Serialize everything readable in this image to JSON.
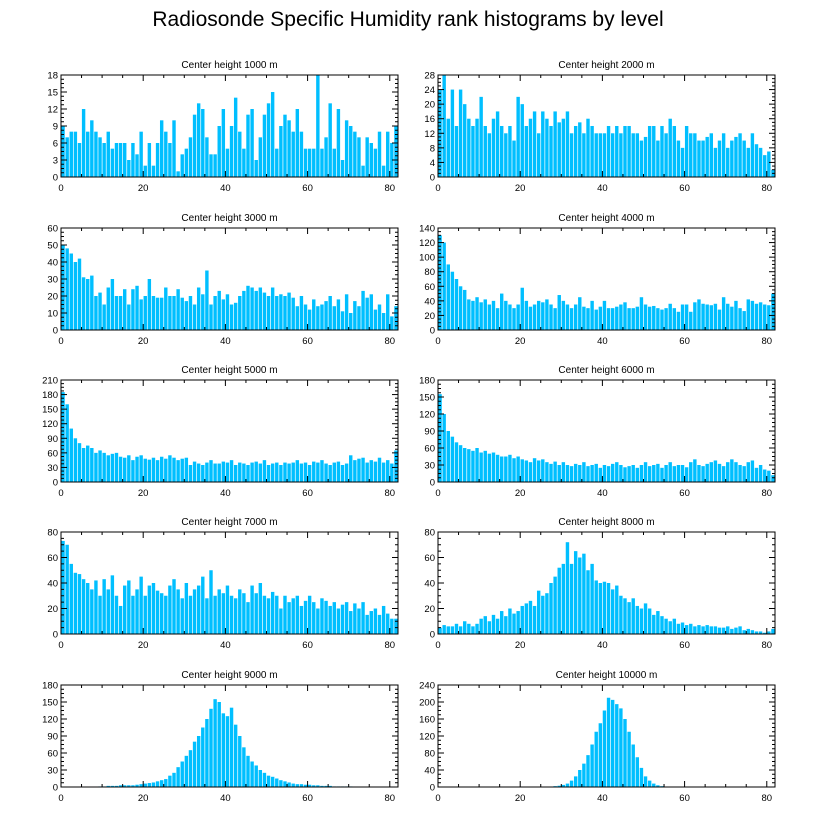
{
  "title": "Radiosonde Specific Humidity rank histograms by level",
  "colors": {
    "bar": "#00BFFF",
    "axis": "#000000",
    "background": "#FFFFFF"
  },
  "chart_data": [
    {
      "type": "bar",
      "title": "Center height 1000 m",
      "xlim": [
        0,
        82
      ],
      "ylim": [
        0,
        18
      ],
      "yticks": [
        0,
        3,
        6,
        9,
        12,
        15,
        18
      ],
      "xticks": [
        0,
        20,
        40,
        60,
        80
      ],
      "values": [
        9,
        7,
        8,
        8,
        6,
        12,
        8,
        10,
        8,
        7,
        6,
        8,
        5,
        6,
        6,
        6,
        3,
        6,
        4,
        8,
        2,
        6,
        2,
        6,
        10,
        8,
        6,
        10,
        1,
        4,
        5,
        7,
        11,
        13,
        12,
        7,
        4,
        4,
        9,
        12,
        5,
        9,
        14,
        8,
        5,
        11,
        12,
        3,
        7,
        11,
        13,
        15,
        5,
        9,
        11,
        10,
        8,
        12,
        8,
        5,
        5,
        5,
        18,
        5,
        7,
        13,
        5,
        12,
        3,
        10,
        9,
        8,
        7,
        2,
        7,
        6,
        5,
        8,
        2,
        8,
        6,
        9
      ]
    },
    {
      "type": "bar",
      "title": "Center height 2000 m",
      "xlim": [
        0,
        82
      ],
      "ylim": [
        0,
        28
      ],
      "yticks": [
        0,
        4,
        8,
        12,
        16,
        20,
        24,
        28
      ],
      "xticks": [
        0,
        20,
        40,
        60,
        80
      ],
      "values": [
        24,
        28,
        16,
        24,
        14,
        24,
        20,
        16,
        14,
        16,
        22,
        14,
        12,
        16,
        18,
        14,
        12,
        14,
        10,
        22,
        20,
        14,
        16,
        18,
        12,
        18,
        16,
        14,
        18,
        15,
        16,
        18,
        12,
        14,
        15,
        12,
        16,
        14,
        12,
        12,
        12,
        14,
        12,
        14,
        12,
        14,
        14,
        12,
        12,
        10,
        11,
        14,
        14,
        10,
        14,
        12,
        16,
        14,
        10,
        8,
        14,
        12,
        12,
        10,
        10,
        11,
        12,
        8,
        10,
        12,
        8,
        10,
        11,
        12,
        10,
        8,
        12,
        9,
        8,
        6,
        7,
        2
      ]
    },
    {
      "type": "bar",
      "title": "Center height 3000 m",
      "xlim": [
        0,
        82
      ],
      "ylim": [
        0,
        60
      ],
      "yticks": [
        0,
        10,
        20,
        30,
        40,
        50,
        60
      ],
      "xticks": [
        0,
        20,
        40,
        60,
        80
      ],
      "values": [
        50,
        48,
        45,
        40,
        42,
        31,
        30,
        32,
        20,
        22,
        15,
        25,
        30,
        20,
        20,
        24,
        15,
        24,
        26,
        18,
        20,
        30,
        20,
        19,
        19,
        25,
        20,
        20,
        24,
        19,
        17,
        20,
        15,
        25,
        21,
        35,
        15,
        20,
        23,
        18,
        21,
        15,
        16,
        20,
        23,
        26,
        25,
        23,
        25,
        22,
        20,
        25,
        20,
        21,
        20,
        22,
        19,
        14,
        20,
        15,
        12,
        18,
        14,
        15,
        17,
        20,
        14,
        18,
        11,
        21,
        10,
        17,
        14,
        23,
        19,
        21,
        12,
        15,
        10,
        21,
        8,
        14
      ]
    },
    {
      "type": "bar",
      "title": "Center height 4000 m",
      "xlim": [
        0,
        82
      ],
      "ylim": [
        0,
        140
      ],
      "yticks": [
        0,
        20,
        40,
        60,
        80,
        100,
        120,
        140
      ],
      "xticks": [
        0,
        20,
        40,
        60,
        80
      ],
      "values": [
        130,
        120,
        90,
        80,
        70,
        60,
        55,
        42,
        40,
        45,
        38,
        42,
        35,
        40,
        30,
        50,
        40,
        35,
        30,
        35,
        58,
        40,
        32,
        35,
        40,
        38,
        42,
        35,
        30,
        48,
        40,
        35,
        30,
        35,
        45,
        32,
        30,
        40,
        28,
        32,
        40,
        30,
        30,
        32,
        35,
        38,
        30,
        30,
        32,
        45,
        35,
        32,
        33,
        30,
        28,
        30,
        36,
        30,
        25,
        35,
        35,
        25,
        38,
        42,
        36,
        35,
        34,
        36,
        28,
        45,
        36,
        32,
        40,
        30,
        26,
        42,
        40,
        36,
        38,
        35,
        34,
        50
      ]
    },
    {
      "type": "bar",
      "title": "Center height 5000 m",
      "xlim": [
        0,
        82
      ],
      "ylim": [
        0,
        210
      ],
      "yticks": [
        0,
        30,
        60,
        90,
        120,
        150,
        180,
        210
      ],
      "xticks": [
        0,
        20,
        40,
        60,
        80
      ],
      "values": [
        185,
        160,
        110,
        90,
        80,
        70,
        75,
        70,
        60,
        65,
        60,
        55,
        58,
        60,
        52,
        50,
        55,
        45,
        52,
        55,
        48,
        46,
        50,
        45,
        52,
        48,
        55,
        50,
        45,
        48,
        50,
        35,
        42,
        38,
        35,
        40,
        45,
        38,
        38,
        42,
        40,
        45,
        35,
        40,
        38,
        35,
        40,
        42,
        38,
        45,
        35,
        38,
        40,
        35,
        40,
        38,
        40,
        45,
        38,
        40,
        35,
        42,
        40,
        45,
        38,
        35,
        40,
        42,
        35,
        38,
        55,
        45,
        48,
        50,
        40,
        45,
        42,
        50,
        40,
        45,
        38,
        65
      ]
    },
    {
      "type": "bar",
      "title": "Center height 6000 m",
      "xlim": [
        0,
        82
      ],
      "ylim": [
        0,
        180
      ],
      "yticks": [
        0,
        30,
        60,
        90,
        120,
        150,
        180
      ],
      "xticks": [
        0,
        20,
        40,
        60,
        80
      ],
      "values": [
        155,
        120,
        90,
        80,
        70,
        65,
        60,
        58,
        55,
        60,
        52,
        55,
        50,
        52,
        48,
        45,
        45,
        48,
        42,
        45,
        40,
        38,
        35,
        42,
        38,
        40,
        35,
        32,
        36,
        30,
        35,
        30,
        28,
        32,
        30,
        35,
        28,
        30,
        32,
        25,
        30,
        28,
        32,
        35,
        30,
        26,
        28,
        30,
        25,
        30,
        35,
        28,
        30,
        32,
        25,
        30,
        35,
        28,
        30,
        30,
        26,
        35,
        40,
        30,
        28,
        32,
        35,
        38,
        32,
        28,
        35,
        40,
        35,
        30,
        28,
        35,
        38,
        25,
        30,
        22,
        20,
        12
      ]
    },
    {
      "type": "bar",
      "title": "Center height 7000 m",
      "xlim": [
        0,
        82
      ],
      "ylim": [
        0,
        80
      ],
      "yticks": [
        0,
        20,
        40,
        60,
        80
      ],
      "xticks": [
        0,
        20,
        40,
        60,
        80
      ],
      "values": [
        73,
        70,
        55,
        48,
        47,
        43,
        40,
        35,
        42,
        30,
        43,
        35,
        46,
        30,
        22,
        38,
        42,
        30,
        35,
        45,
        30,
        38,
        40,
        34,
        32,
        30,
        38,
        43,
        35,
        28,
        40,
        30,
        35,
        38,
        45,
        28,
        50,
        30,
        35,
        32,
        38,
        30,
        28,
        35,
        32,
        25,
        38,
        32,
        40,
        30,
        28,
        33,
        30,
        20,
        30,
        25,
        28,
        30,
        22,
        26,
        30,
        25,
        20,
        28,
        26,
        22,
        25,
        20,
        23,
        25,
        18,
        24,
        20,
        25,
        15,
        18,
        20,
        15,
        22,
        16,
        12,
        12
      ]
    },
    {
      "type": "bar",
      "title": "Center height 8000 m",
      "xlim": [
        0,
        82
      ],
      "ylim": [
        0,
        80
      ],
      "yticks": [
        0,
        20,
        40,
        60,
        80
      ],
      "xticks": [
        0,
        20,
        40,
        60,
        80
      ],
      "values": [
        5,
        7,
        6,
        6,
        8,
        6,
        10,
        8,
        6,
        8,
        12,
        14,
        10,
        15,
        12,
        18,
        14,
        20,
        16,
        18,
        22,
        24,
        26,
        22,
        34,
        30,
        32,
        40,
        45,
        52,
        55,
        72,
        55,
        65,
        60,
        63,
        50,
        55,
        42,
        40,
        41,
        40,
        35,
        38,
        30,
        28,
        25,
        28,
        22,
        20,
        24,
        20,
        15,
        18,
        14,
        12,
        10,
        12,
        8,
        9,
        7,
        8,
        6,
        7,
        6,
        7,
        6,
        6,
        5,
        5,
        6,
        4,
        5,
        6,
        3,
        4,
        3,
        2,
        2,
        1,
        2,
        4
      ]
    },
    {
      "type": "bar",
      "title": "Center height 9000 m",
      "xlim": [
        0,
        82
      ],
      "ylim": [
        0,
        180
      ],
      "yticks": [
        0,
        30,
        60,
        90,
        120,
        150,
        180
      ],
      "xticks": [
        0,
        20,
        40,
        60,
        80
      ],
      "values": [
        0,
        0,
        0,
        0,
        0,
        0,
        0,
        0,
        0,
        1,
        1,
        2,
        2,
        2,
        3,
        3,
        3,
        3,
        4,
        5,
        6,
        7,
        8,
        10,
        12,
        14,
        20,
        25,
        35,
        45,
        55,
        65,
        80,
        90,
        105,
        120,
        138,
        155,
        150,
        130,
        125,
        140,
        110,
        90,
        70,
        55,
        45,
        38,
        30,
        25,
        20,
        18,
        15,
        12,
        10,
        8,
        6,
        5,
        5,
        4,
        4,
        3,
        3,
        2,
        2,
        2,
        1,
        1,
        1,
        1,
        1,
        0,
        0,
        0,
        0,
        0,
        0,
        0,
        0,
        0,
        0,
        0
      ]
    },
    {
      "type": "bar",
      "title": "Center height 10000 m",
      "xlim": [
        0,
        82
      ],
      "ylim": [
        0,
        240
      ],
      "yticks": [
        0,
        40,
        80,
        120,
        160,
        200,
        240
      ],
      "xticks": [
        0,
        20,
        40,
        60,
        80
      ],
      "values": [
        0,
        0,
        0,
        0,
        0,
        0,
        0,
        0,
        0,
        0,
        0,
        0,
        0,
        0,
        0,
        0,
        0,
        0,
        0,
        0,
        0,
        0,
        0,
        0,
        0,
        0,
        1,
        1,
        2,
        3,
        5,
        8,
        15,
        25,
        40,
        55,
        75,
        100,
        130,
        150,
        180,
        210,
        205,
        195,
        185,
        160,
        130,
        100,
        70,
        45,
        25,
        15,
        8,
        4,
        2,
        1,
        0,
        0,
        0,
        0,
        0,
        0,
        0,
        0,
        0,
        0,
        0,
        0,
        0,
        0,
        0,
        0,
        0,
        0,
        0,
        0,
        0,
        0,
        0,
        0,
        0,
        0
      ]
    }
  ]
}
